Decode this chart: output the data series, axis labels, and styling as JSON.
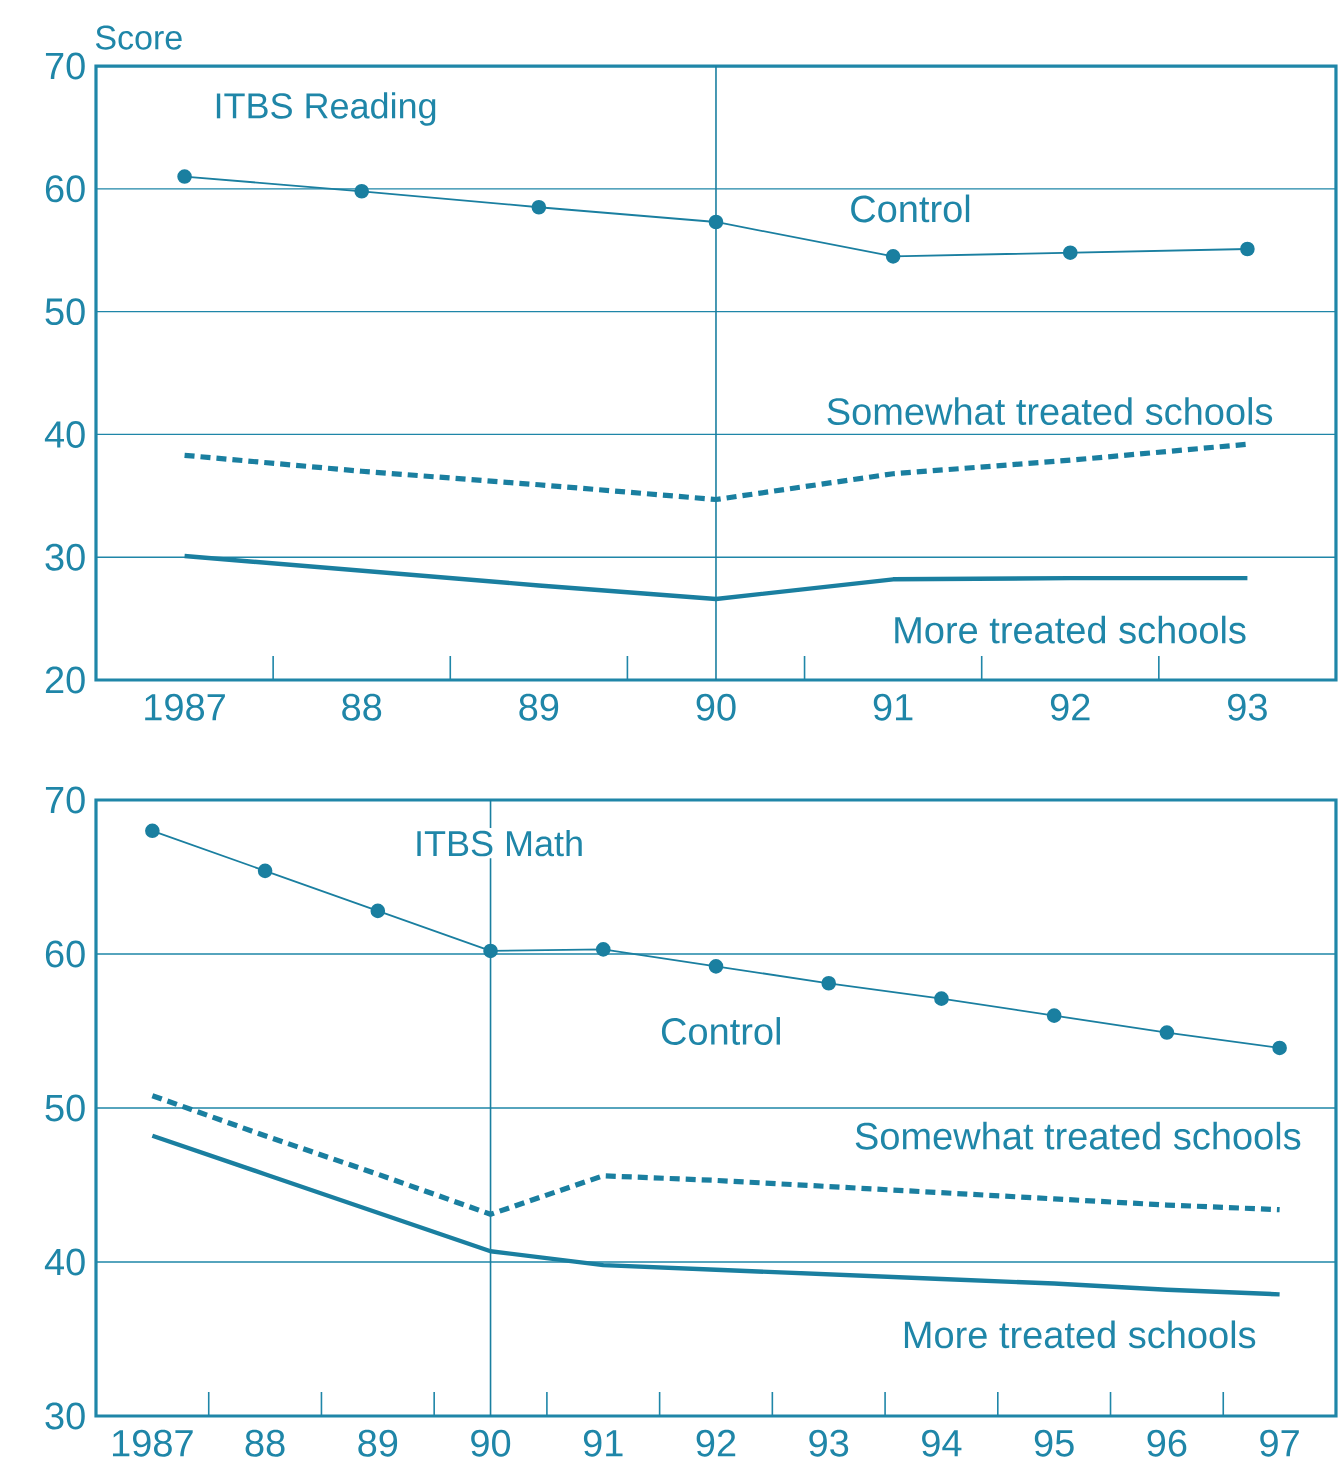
{
  "chart_data": [
    {
      "type": "line",
      "title": "ITBS Reading",
      "ylabel": "Score",
      "x": [
        1987,
        1988,
        1989,
        1990,
        1991,
        1992,
        1993
      ],
      "series": [
        {
          "name": "Control",
          "color": "#1a7fa0",
          "marker": "circle",
          "line_style": "solid",
          "values": [
            61.0,
            59.8,
            58.5,
            57.3,
            54.5,
            54.8,
            55.1
          ]
        },
        {
          "name": "Somewhat treated schools",
          "color": "#1a7fa0",
          "marker": "none",
          "line_style": "dotted",
          "values": [
            38.3,
            37.0,
            35.9,
            34.7,
            36.8,
            37.9,
            39.2
          ]
        },
        {
          "name": "More treated schools",
          "color": "#1a7fa0",
          "marker": "none",
          "line_style": "solid",
          "values": [
            30.1,
            28.9,
            27.7,
            26.6,
            28.2,
            28.3,
            28.3
          ]
        }
      ],
      "xlim": [
        1986.5,
        1993.5
      ],
      "ylim": [
        20,
        70
      ],
      "xticks": [
        {
          "value": 1987,
          "label": "1987"
        },
        {
          "value": 1987.5,
          "label": null
        },
        {
          "value": 1988,
          "label": "88"
        },
        {
          "value": 1988.5,
          "label": null
        },
        {
          "value": 1989,
          "label": "89"
        },
        {
          "value": 1989.5,
          "label": null
        },
        {
          "value": 1990,
          "label": "90"
        },
        {
          "value": 1990.5,
          "label": null
        },
        {
          "value": 1991,
          "label": "91"
        },
        {
          "value": 1991.5,
          "label": null
        },
        {
          "value": 1992,
          "label": "92"
        },
        {
          "value": 1992.5,
          "label": null
        },
        {
          "value": 1993,
          "label": "93"
        }
      ],
      "yticks": [
        20,
        30,
        40,
        50,
        60,
        70
      ],
      "ref_lines": [
        {
          "axis": "x",
          "value": 1990,
          "color": "#1a7fa0"
        }
      ],
      "grid": "y"
    },
    {
      "type": "line",
      "title": "ITBS Math",
      "x": [
        1987,
        1988,
        1989,
        1990,
        1991,
        1992,
        1993,
        1994,
        1995,
        1996,
        1997
      ],
      "series": [
        {
          "name": "Control",
          "color": "#1a7fa0",
          "marker": "circle",
          "line_style": "solid",
          "values": [
            68.0,
            65.4,
            62.8,
            60.2,
            60.3,
            59.2,
            58.1,
            57.1,
            56.0,
            54.9,
            53.9
          ]
        },
        {
          "name": "Somewhat treated schools",
          "color": "#1a7fa0",
          "marker": "none",
          "line_style": "dotted",
          "values": [
            50.8,
            48.2,
            45.7,
            43.1,
            45.6,
            45.3,
            44.9,
            44.5,
            44.1,
            43.7,
            43.4
          ]
        },
        {
          "name": "More treated schools",
          "color": "#1a7fa0",
          "marker": "none",
          "line_style": "solid",
          "values": [
            48.2,
            45.7,
            43.2,
            40.7,
            39.8,
            39.5,
            39.2,
            38.9,
            38.6,
            38.2,
            37.9
          ]
        }
      ],
      "xlim": [
        1986.5,
        1997.5
      ],
      "ylim": [
        30,
        70
      ],
      "xticks": [
        {
          "value": 1987,
          "label": "1987"
        },
        {
          "value": 1987.5,
          "label": null
        },
        {
          "value": 1988,
          "label": "88"
        },
        {
          "value": 1988.5,
          "label": null
        },
        {
          "value": 1989,
          "label": "89"
        },
        {
          "value": 1989.5,
          "label": null
        },
        {
          "value": 1990,
          "label": "90"
        },
        {
          "value": 1990.5,
          "label": null
        },
        {
          "value": 1991,
          "label": "91"
        },
        {
          "value": 1991.5,
          "label": null
        },
        {
          "value": 1992,
          "label": "92"
        },
        {
          "value": 1992.5,
          "label": null
        },
        {
          "value": 1993,
          "label": "93"
        },
        {
          "value": 1993.5,
          "label": null
        },
        {
          "value": 1994,
          "label": "94"
        },
        {
          "value": 1994.5,
          "label": null
        },
        {
          "value": 1995,
          "label": "95"
        },
        {
          "value": 1995.5,
          "label": null
        },
        {
          "value": 1996,
          "label": "96"
        },
        {
          "value": 1996.5,
          "label": null
        },
        {
          "value": 1997,
          "label": "97"
        }
      ],
      "yticks": [
        30,
        40,
        50,
        60,
        70
      ],
      "ref_lines": [
        {
          "axis": "x",
          "value": 1990,
          "color": "#1a7fa0"
        }
      ],
      "grid": "y"
    }
  ]
}
